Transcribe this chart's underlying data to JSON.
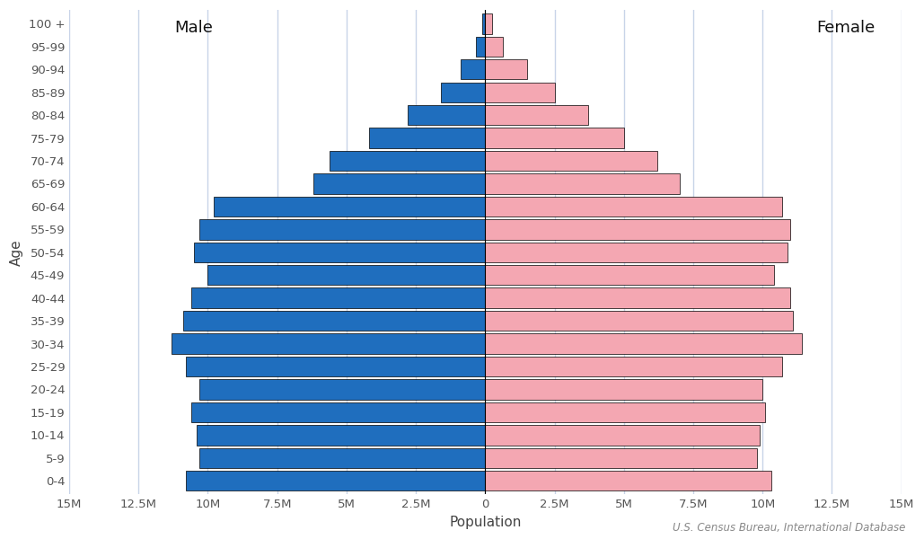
{
  "age_groups": [
    "0-4",
    "5-9",
    "10-14",
    "15-19",
    "20-24",
    "25-29",
    "30-34",
    "35-39",
    "40-44",
    "45-49",
    "50-54",
    "55-59",
    "60-64",
    "65-69",
    "70-74",
    "75-79",
    "80-84",
    "85-89",
    "90-94",
    "95-99",
    "100 +"
  ],
  "male": [
    10.8,
    10.3,
    10.4,
    10.6,
    10.3,
    10.8,
    11.3,
    10.9,
    10.6,
    10.0,
    10.5,
    10.3,
    9.8,
    6.2,
    5.6,
    4.2,
    2.8,
    1.6,
    0.9,
    0.35,
    0.1
  ],
  "female": [
    10.3,
    9.8,
    9.9,
    10.1,
    10.0,
    10.7,
    11.4,
    11.1,
    11.0,
    10.4,
    10.9,
    11.0,
    10.7,
    7.0,
    6.2,
    5.0,
    3.7,
    2.5,
    1.5,
    0.65,
    0.25
  ],
  "male_color": "#1f6ebe",
  "female_color": "#f4a7b2",
  "edge_color": "#000000",
  "background_color": "#ffffff",
  "xlabel": "Population",
  "ylabel": "Age",
  "xlim": 15,
  "xticks": [
    -15,
    -12.5,
    -10,
    -7.5,
    -5,
    -2.5,
    0,
    2.5,
    5,
    7.5,
    10,
    12.5,
    15
  ],
  "xtick_labels": [
    "15M",
    "12.5M",
    "10M",
    "7.5M",
    "5M",
    "2.5M",
    "0",
    "2.5M",
    "5M",
    "7.5M",
    "10M",
    "12.5M",
    "15M"
  ],
  "male_label": "Male",
  "female_label": "Female",
  "grid_color": "#c8d4e8",
  "source_text": "U.S. Census Bureau, International Database"
}
